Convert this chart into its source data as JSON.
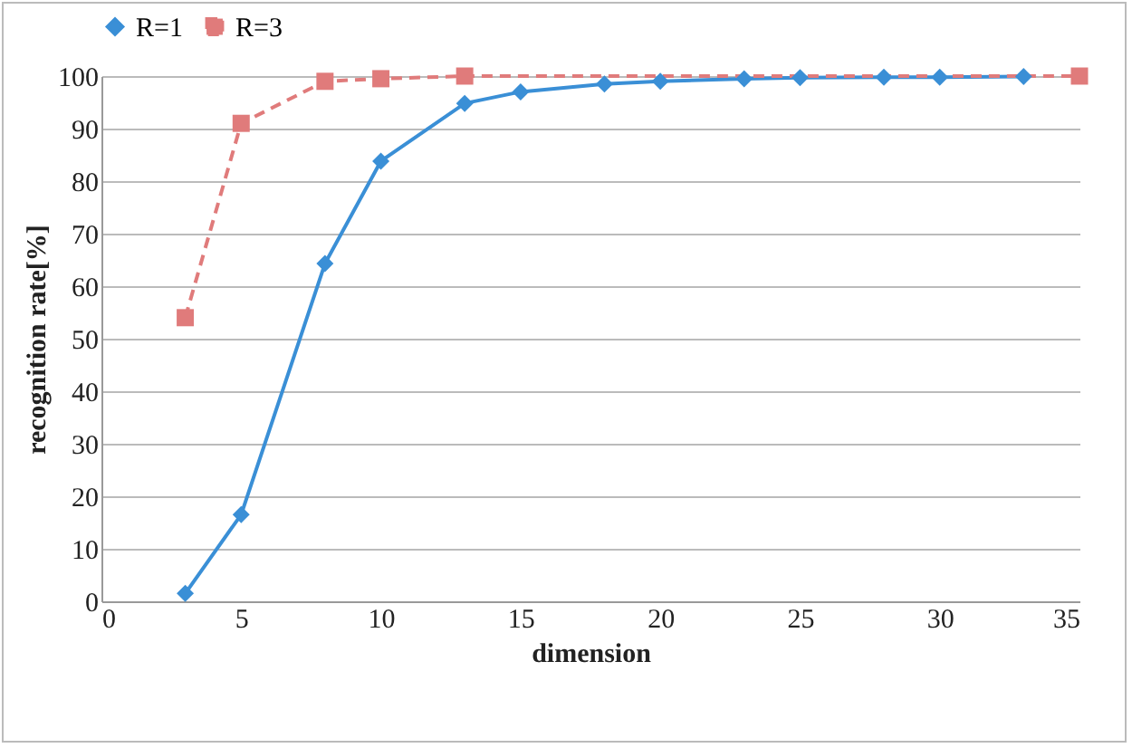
{
  "chart_data": {
    "type": "line",
    "xlabel": "dimension",
    "ylabel": "recognition rate[%]",
    "xlim": [
      0,
      35
    ],
    "xticks": [
      0,
      5,
      10,
      15,
      20,
      25,
      30,
      35
    ],
    "ylim": [
      0,
      100
    ],
    "yticks": [
      0,
      10,
      20,
      30,
      40,
      50,
      60,
      70,
      80,
      90,
      100
    ],
    "grid": "y",
    "legend": "top",
    "series": [
      {
        "name": "R=1",
        "color": "#3a8fd6",
        "marker": "diamond",
        "line_style": "solid",
        "x": [
          3,
          5,
          8,
          10,
          13,
          15,
          18,
          20,
          23,
          25,
          28,
          30,
          33
        ],
        "values": [
          1.5,
          16.5,
          64.3,
          83.8,
          94.8,
          97,
          98.5,
          99,
          99.5,
          99.7,
          99.8,
          99.8,
          99.9
        ]
      },
      {
        "name": "R=3",
        "color": "#e07b7b",
        "marker": "square",
        "line_style": "dashed",
        "x": [
          3,
          5,
          8,
          10,
          13,
          35
        ],
        "values": [
          54,
          91,
          99,
          99.5,
          100,
          100
        ]
      }
    ]
  }
}
